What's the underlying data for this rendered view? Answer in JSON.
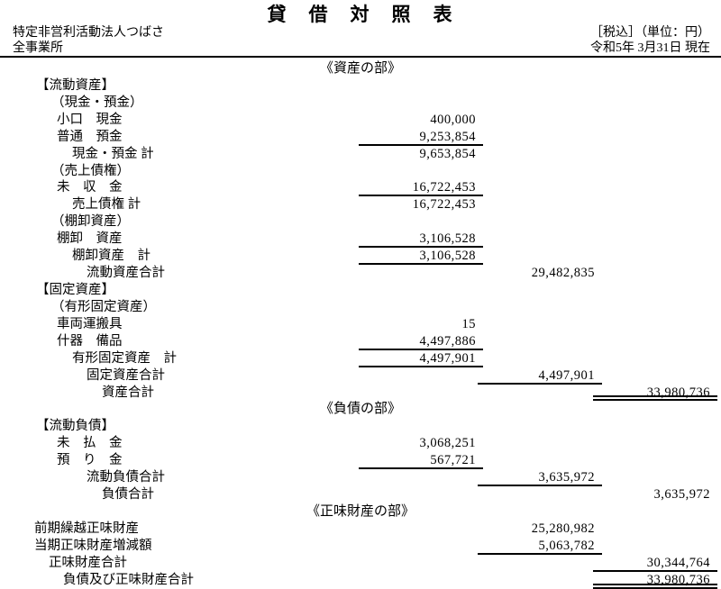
{
  "document": {
    "title": "貸　借　対　照　表",
    "org_name": "特定非営利活動法人つばさ",
    "office": "全事業所",
    "tax_note": "［税込］（単位：円）",
    "date_note": "令和5年 3月31日 現在"
  },
  "colors": {
    "text": "#000000",
    "background": "#ffffff",
    "rule": "#000000"
  },
  "rows": [
    {
      "type": "heading",
      "label": "《資産の部》"
    },
    {
      "type": "row",
      "indent": "section",
      "label": "【流動資産】",
      "col": 0,
      "value": "",
      "rule": "none"
    },
    {
      "type": "row",
      "indent": "group",
      "label": "（現金・預金）",
      "col": 0,
      "value": "",
      "rule": "none"
    },
    {
      "type": "row",
      "indent": "item",
      "label": "小口　現金",
      "col": 1,
      "value": "400,000",
      "rule": "none"
    },
    {
      "type": "row",
      "indent": "item",
      "label": "普通　預金",
      "col": 1,
      "value": "9,253,854",
      "rule": "single"
    },
    {
      "type": "row",
      "indent": "sub",
      "label": "現金・預金 計",
      "col": 1,
      "value": "9,653,854",
      "rule": "none"
    },
    {
      "type": "row",
      "indent": "group",
      "label": "（売上債権）",
      "col": 0,
      "value": "",
      "rule": "none"
    },
    {
      "type": "row",
      "indent": "item",
      "label": "未　収　金",
      "col": 1,
      "value": "16,722,453",
      "rule": "single"
    },
    {
      "type": "row",
      "indent": "sub",
      "label": "売上債権 計",
      "col": 1,
      "value": "16,722,453",
      "rule": "none"
    },
    {
      "type": "row",
      "indent": "group",
      "label": "（棚卸資産）",
      "col": 0,
      "value": "",
      "rule": "none"
    },
    {
      "type": "row",
      "indent": "item",
      "label": "棚卸　資産",
      "col": 1,
      "value": "3,106,528",
      "rule": "single"
    },
    {
      "type": "row",
      "indent": "sub",
      "label": "棚卸資産　計",
      "col": 1,
      "value": "3,106,528",
      "rule": "single"
    },
    {
      "type": "row",
      "indent": "total",
      "label": "流動資産合計",
      "col": 2,
      "value": "29,482,835",
      "rule": "none"
    },
    {
      "type": "row",
      "indent": "section",
      "label": "【固定資産】",
      "col": 0,
      "value": "",
      "rule": "none"
    },
    {
      "type": "row",
      "indent": "group",
      "label": "（有形固定資産）",
      "col": 0,
      "value": "",
      "rule": "none"
    },
    {
      "type": "row",
      "indent": "item",
      "label": "車両運搬具",
      "col": 1,
      "value": "15",
      "rule": "none"
    },
    {
      "type": "row",
      "indent": "item",
      "label": "什器　備品",
      "col": 1,
      "value": "4,497,886",
      "rule": "single"
    },
    {
      "type": "row",
      "indent": "sub",
      "label": "有形固定資産　計",
      "col": 1,
      "value": "4,497,901",
      "rule": "single"
    },
    {
      "type": "row",
      "indent": "total",
      "label": "固定資産合計",
      "col": 2,
      "value": "4,497,901",
      "rule": "single"
    },
    {
      "type": "row",
      "indent": "grand",
      "label": "資産合計",
      "col": 3,
      "value": "33,980,736",
      "rule": "double"
    },
    {
      "type": "heading",
      "label": "《負債の部》"
    },
    {
      "type": "row",
      "indent": "section",
      "label": "【流動負債】",
      "col": 0,
      "value": "",
      "rule": "none"
    },
    {
      "type": "row",
      "indent": "item",
      "label": "未　払　金",
      "col": 1,
      "value": "3,068,251",
      "rule": "none"
    },
    {
      "type": "row",
      "indent": "item",
      "label": "預　り　金",
      "col": 1,
      "value": "567,721",
      "rule": "single"
    },
    {
      "type": "row",
      "indent": "total",
      "label": "流動負債合計",
      "col": 2,
      "value": "3,635,972",
      "rule": "single"
    },
    {
      "type": "row",
      "indent": "grand",
      "label": "負債合計",
      "col": 3,
      "value": "3,635,972",
      "rule": "none"
    },
    {
      "type": "heading",
      "label": "《正味財産の部》"
    },
    {
      "type": "row",
      "indent": "net-item",
      "label": "前期繰越正味財産",
      "col": 2,
      "value": "25,280,982",
      "rule": "none"
    },
    {
      "type": "row",
      "indent": "net-item",
      "label": "当期正味財産増減額",
      "col": 2,
      "value": "5,063,782",
      "rule": "single"
    },
    {
      "type": "row",
      "indent": "net-total",
      "label": "正味財産合計",
      "col": 3,
      "value": "30,344,764",
      "rule": "single"
    },
    {
      "type": "row",
      "indent": "net-grand",
      "label": "負債及び正味財産合計",
      "col": 3,
      "value": "33,980,736",
      "rule": "double"
    }
  ]
}
